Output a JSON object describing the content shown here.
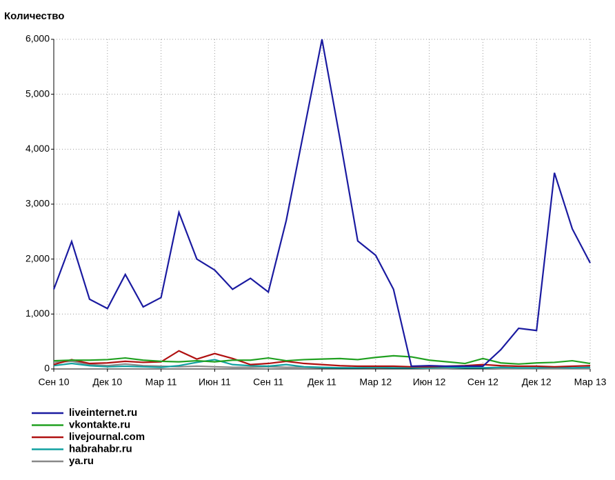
{
  "chart_data": {
    "type": "line",
    "title": "Количество",
    "categories": [
      "Сен 10",
      null,
      null,
      "Дек 10",
      null,
      null,
      "Мар 11",
      null,
      null,
      "Июн 11",
      null,
      null,
      "Сен 11",
      null,
      null,
      "Дек 11",
      null,
      null,
      "Мар 12",
      null,
      null,
      "Июн 12",
      null,
      null,
      "Сен 12",
      null,
      null,
      "Дек 12",
      null,
      null,
      "Мар 13"
    ],
    "series": [
      {
        "name": "liveinternet.ru",
        "color": "#1a1aa0",
        "values": [
          1450,
          2320,
          1270,
          1100,
          1720,
          1130,
          1300,
          2850,
          2000,
          1800,
          1450,
          1650,
          1400,
          2700,
          4350,
          6000,
          4200,
          2330,
          2070,
          1450,
          50,
          60,
          50,
          50,
          50,
          350,
          740,
          700,
          3570,
          2550,
          1930
        ]
      },
      {
        "name": "vkontakte.ru",
        "color": "#20a020",
        "values": [
          150,
          160,
          160,
          170,
          200,
          160,
          140,
          130,
          150,
          130,
          160,
          160,
          200,
          150,
          170,
          180,
          190,
          170,
          210,
          240,
          220,
          160,
          130,
          100,
          190,
          110,
          90,
          110,
          120,
          150,
          100
        ]
      },
      {
        "name": "livejournal.com",
        "color": "#b01010",
        "values": [
          80,
          170,
          100,
          110,
          140,
          120,
          130,
          330,
          180,
          280,
          190,
          80,
          100,
          140,
          100,
          80,
          60,
          50,
          50,
          50,
          40,
          40,
          50,
          60,
          80,
          60,
          50,
          50,
          40,
          50,
          60
        ]
      },
      {
        "name": "habrahabr.ru",
        "color": "#10a0a0",
        "values": [
          60,
          100,
          60,
          40,
          50,
          40,
          30,
          60,
          120,
          170,
          80,
          60,
          50,
          80,
          40,
          30,
          20,
          20,
          30,
          20,
          20,
          20,
          30,
          20,
          20,
          30,
          20,
          20,
          30,
          20,
          30
        ]
      },
      {
        "name": "ya.ru",
        "color": "#888888",
        "values": [
          120,
          140,
          80,
          60,
          90,
          60,
          50,
          40,
          50,
          40,
          30,
          30,
          40,
          30,
          30,
          20,
          20,
          20,
          20,
          20,
          20,
          10,
          10,
          20,
          20,
          10,
          10,
          10,
          10,
          10,
          10
        ]
      }
    ],
    "ylim": [
      0,
      6000
    ],
    "yticks": [
      0,
      {
        "value": 1000,
        "label": "1,000"
      },
      {
        "value": 2000,
        "label": "2,000"
      },
      {
        "value": 3000,
        "label": "3,000"
      },
      {
        "value": 4000,
        "label": "4,000"
      },
      {
        "value": 5000,
        "label": "5,000"
      },
      {
        "value": 6000,
        "label": "6,000"
      }
    ],
    "grid": true
  }
}
